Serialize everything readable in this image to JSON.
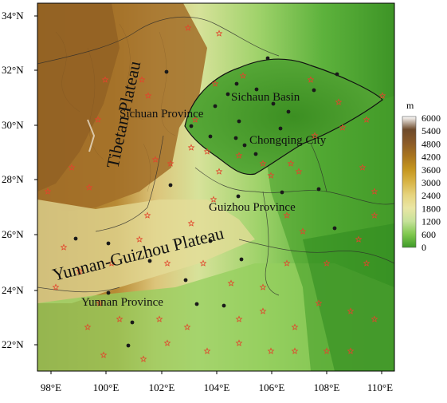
{
  "map": {
    "lat_labels": [
      "34°N",
      "32°N",
      "30°N",
      "28°N",
      "26°N",
      "24°N",
      "22°N"
    ],
    "lon_labels": [
      "98°E",
      "100°E",
      "102°E",
      "104°E",
      "106°E",
      "108°E",
      "110°E"
    ],
    "region_labels": {
      "tibetan_plateau": "Tibetan Plateau",
      "yunnan_guizhou_plateau": "Yunnan-Guizhou Plateau",
      "sichuan_province": "Sichuan Province",
      "sichuan_basin": "Sichaun Basin",
      "chongqing_city": "Chongqing City",
      "guizhou_province": "Guizhou Province",
      "yunnan_province": "Yunnan Province"
    }
  },
  "colorbar": {
    "unit": "m",
    "ticks": [
      "6000",
      "5400",
      "4800",
      "4200",
      "3600",
      "3000",
      "2400",
      "1800",
      "1200",
      "600",
      "0"
    ],
    "colors": [
      "#ffffff",
      "#6d4a2a",
      "#8a5a28",
      "#a8741e",
      "#c4951e",
      "#d8b446",
      "#e6d47e",
      "#eae6a4",
      "#c6e29a",
      "#7fc84e",
      "#3f9a28"
    ]
  },
  "colors": {
    "station_dot": "#1a1a1a",
    "station_star": "#e2452c"
  }
}
